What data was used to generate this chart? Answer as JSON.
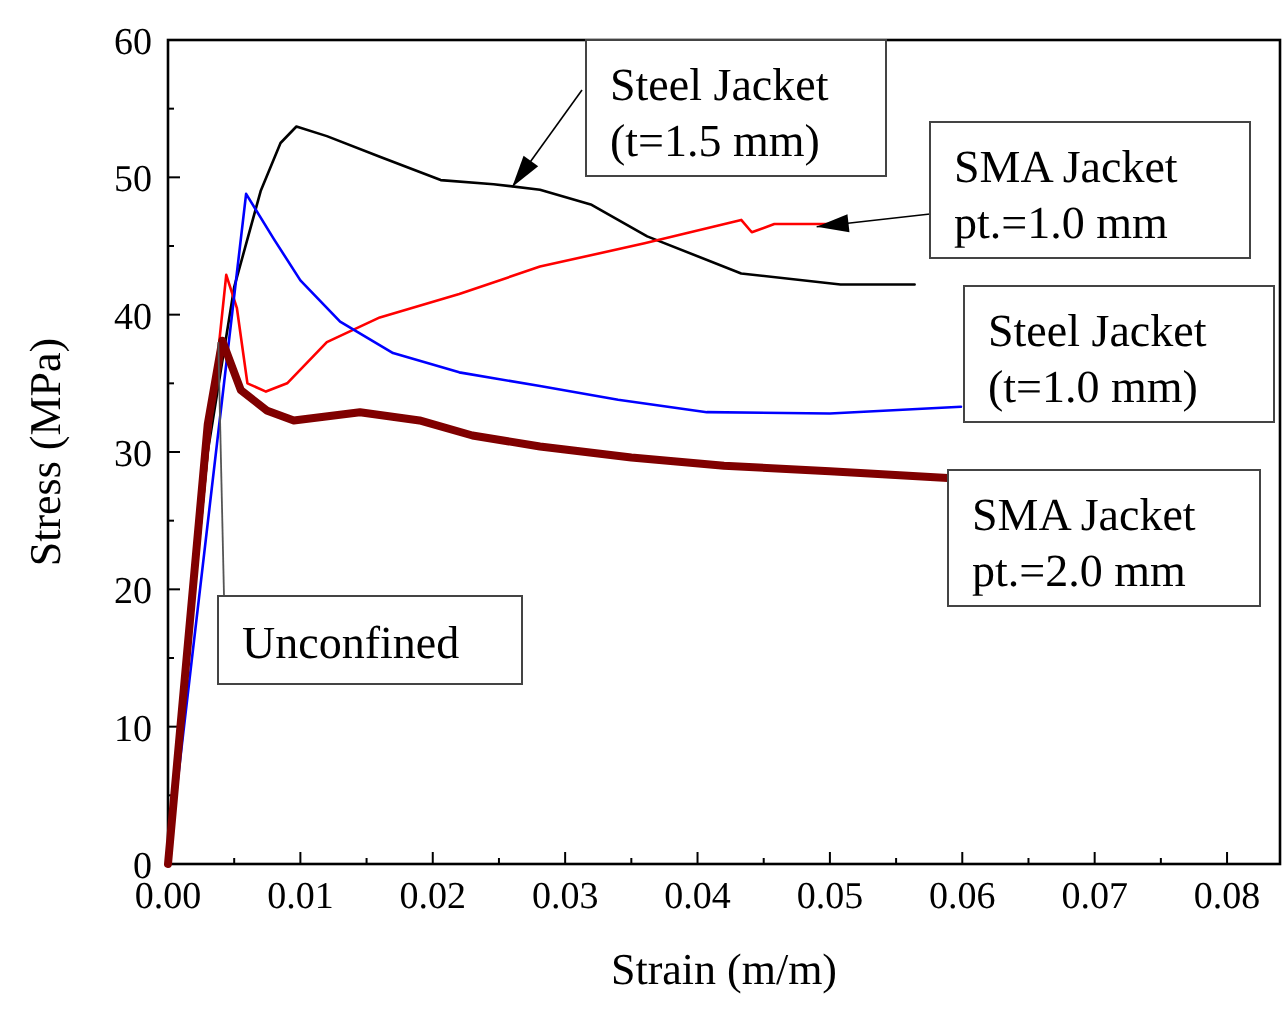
{
  "chart_data": {
    "type": "line",
    "xlabel": "Strain (m/m)",
    "ylabel": "Stress (MPa)",
    "xlim": [
      0,
      0.084
    ],
    "ylim": [
      0,
      60
    ],
    "xticks": [
      {
        "value": 0,
        "label": "0.00"
      },
      {
        "value": 0.01,
        "label": "0.01"
      },
      {
        "value": 0.02,
        "label": "0.02"
      },
      {
        "value": 0.03,
        "label": "0.03"
      },
      {
        "value": 0.04,
        "label": "0.04"
      },
      {
        "value": 0.05,
        "label": "0.05"
      },
      {
        "value": 0.06,
        "label": "0.06"
      },
      {
        "value": 0.07,
        "label": "0.07"
      },
      {
        "value": 0.08,
        "label": "0.08"
      }
    ],
    "yticks": [
      0,
      10,
      20,
      30,
      40,
      50,
      60
    ],
    "grid": false,
    "legend": "right",
    "line_style": "solid",
    "series": [
      {
        "name": "Steel Jacket\n(t=1.5 mm)",
        "color": "#000000",
        "x": [
          0,
          0.003,
          0.005,
          0.007,
          0.0085,
          0.0097,
          0.012,
          0.016,
          0.0206,
          0.0246,
          0.0281,
          0.032,
          0.0362,
          0.0433,
          0.0508,
          0.0564
        ],
        "values": [
          0,
          30,
          42,
          49,
          52.5,
          53.7,
          53,
          51.5,
          49.8,
          49.5,
          49.1,
          48,
          45.7,
          43,
          42.2,
          42.2
        ]
      },
      {
        "name": "SMA Jacket\npt.=1.0 mm",
        "color": "#ff0000",
        "x": [
          0,
          0.003,
          0.0044,
          0.0052,
          0.006,
          0.0074,
          0.009,
          0.012,
          0.016,
          0.022,
          0.0281,
          0.036,
          0.0433,
          0.0441,
          0.0458,
          0.0504
        ],
        "values": [
          0,
          30,
          42.9,
          40.5,
          35,
          34.4,
          35,
          38,
          39.8,
          41.5,
          43.5,
          45.2,
          46.9,
          46,
          46.6,
          46.6
        ]
      },
      {
        "name": "Steel Jacket\n(t=1.0 mm)",
        "color": "#0000ff",
        "x": [
          0,
          0.0059,
          0.008,
          0.01,
          0.013,
          0.017,
          0.022,
          0.0281,
          0.034,
          0.0407,
          0.05,
          0.0599
        ],
        "values": [
          0,
          48.8,
          45.5,
          42.5,
          39.5,
          37.2,
          35.8,
          34.8,
          33.8,
          32.9,
          32.8,
          33.3
        ]
      },
      {
        "name": "SMA Jacket\npt.=2.0 mm",
        "color": "#800000",
        "x": [
          0,
          0.003,
          0.0041,
          0.0055,
          0.0075,
          0.0095,
          0.0145,
          0.019,
          0.023,
          0.0281,
          0.035,
          0.042,
          0.05,
          0.0589
        ],
        "values": [
          0,
          32,
          38.1,
          34.5,
          33,
          32.3,
          32.9,
          32.3,
          31.2,
          30.4,
          29.6,
          29,
          28.6,
          28.1
        ]
      }
    ],
    "annotations": [
      {
        "text": "Unconfined",
        "x": 0.0038,
        "y": 38
      }
    ]
  }
}
